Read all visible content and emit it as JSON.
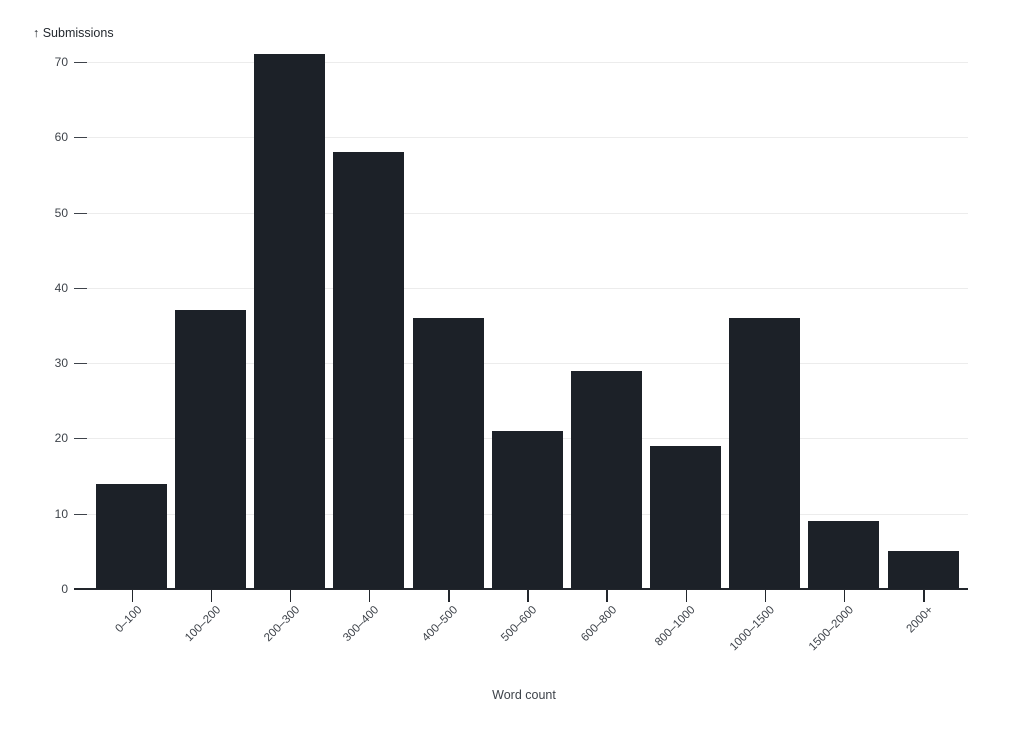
{
  "chart_data": {
    "type": "bar",
    "title": "↑ Submissions",
    "xlabel": "Word count",
    "ylabel": "Submissions",
    "categories": [
      "0–100",
      "100–200",
      "200–300",
      "300–400",
      "400–500",
      "500–600",
      "600–800",
      "800–1000",
      "1000–1500",
      "1500–2000",
      "2000+"
    ],
    "values": [
      14,
      37,
      71,
      58,
      36,
      21,
      29,
      19,
      36,
      9,
      5
    ],
    "y_ticks": [
      0,
      10,
      20,
      30,
      40,
      50,
      60,
      70
    ],
    "ylim": [
      0,
      71
    ],
    "grid": true,
    "legend": false,
    "colors": {
      "background": "#ffffff",
      "bar": "#1c2128",
      "grid": "#ececec",
      "axis": "#22262c",
      "tick_text": "#3e434a",
      "title_text": "#24292f"
    }
  }
}
